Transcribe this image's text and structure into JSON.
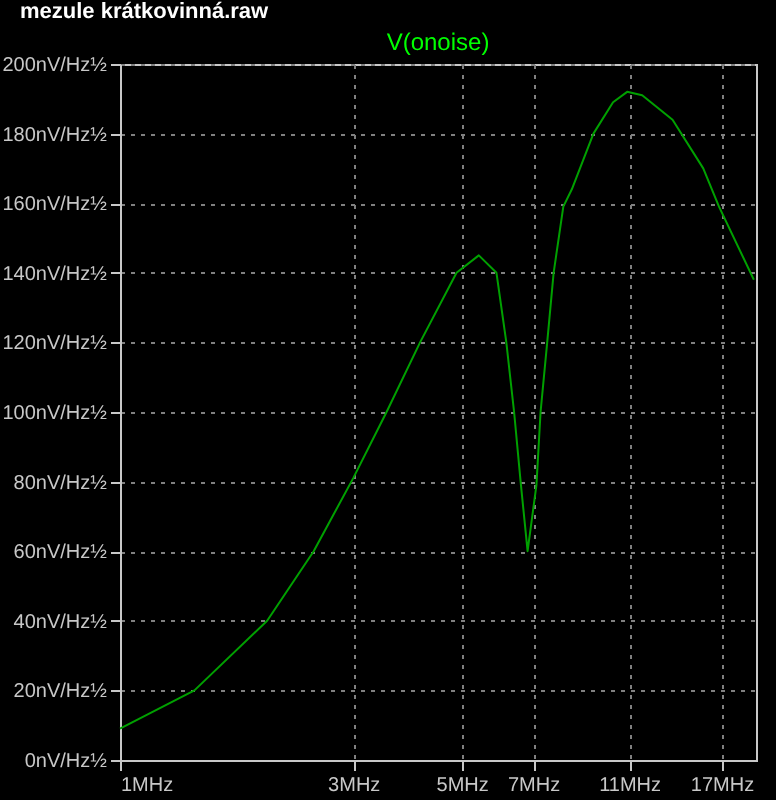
{
  "chart_data": {
    "type": "line",
    "title": "V(onoise)",
    "annotations": [
      "mezule krátkovinná.raw"
    ],
    "log": "x",
    "xlim": [
      1,
      20
    ],
    "xticks": [
      {
        "value": 1,
        "label": "1MHz"
      },
      {
        "value": 3,
        "label": "3MHz"
      },
      {
        "value": 5,
        "label": "5MHz"
      },
      {
        "value": 7,
        "label": "7MHz"
      },
      {
        "value": 11,
        "label": "11MHz"
      },
      {
        "value": 17,
        "label": "17MHz"
      }
    ],
    "ylim": [
      0,
      200
    ],
    "yticks": [
      {
        "value": 0,
        "label": "0nV/Hz½"
      },
      {
        "value": 20,
        "label": "20nV/Hz½"
      },
      {
        "value": 40,
        "label": "40nV/Hz½"
      },
      {
        "value": 60,
        "label": "60nV/Hz½"
      },
      {
        "value": 80,
        "label": "80nV/Hz½"
      },
      {
        "value": 100,
        "label": "100nV/Hz½"
      },
      {
        "value": 120,
        "label": "120nV/Hz½"
      },
      {
        "value": 140,
        "label": "140nV/Hz½"
      },
      {
        "value": 160,
        "label": "160nV/Hz½"
      },
      {
        "value": 180,
        "label": "180nV/Hz½"
      },
      {
        "value": 200,
        "label": "200nV/Hz½"
      }
    ],
    "grid": true,
    "marker": "none",
    "line_style": "solid",
    "x": [
      1,
      1.42,
      2.0,
      2.49,
      3.0,
      3.51,
      4.11,
      4.88,
      5.42,
      5.89,
      6.17,
      6.4,
      6.61,
      6.82,
      7.11,
      7.25,
      7.48,
      7.71,
      8.07,
      8.4,
      9.3,
      10.2,
      10.9,
      11.7,
      13.5,
      15.6,
      16.8,
      19.8
    ],
    "series": [
      {
        "color": "#00a000",
        "values": [
          9,
          20,
          40,
          60,
          81,
          100,
          120,
          140,
          145,
          140,
          120,
          100,
          79,
          60,
          79,
          100,
          120,
          140,
          159,
          164,
          180,
          189,
          192,
          191,
          184,
          170,
          159,
          138
        ]
      }
    ]
  }
}
